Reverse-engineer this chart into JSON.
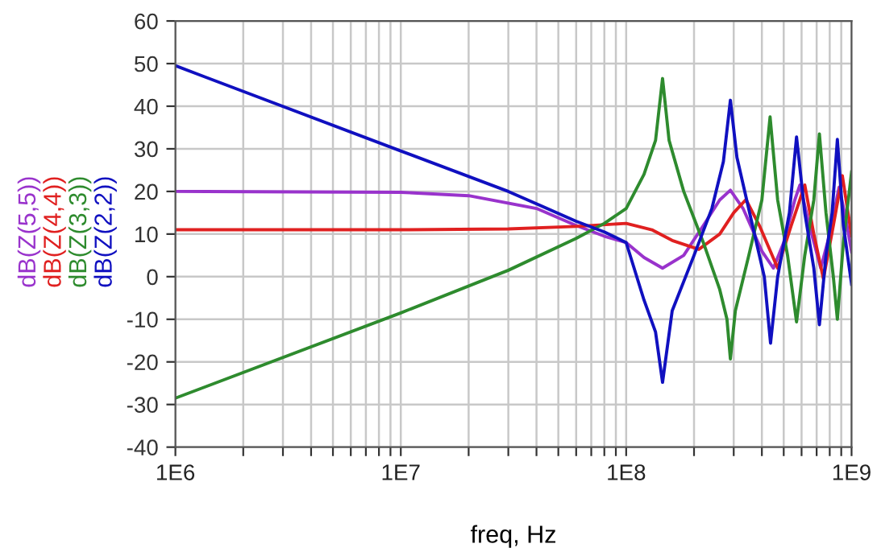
{
  "chart_data": {
    "type": "line",
    "xlabel": "freq, Hz",
    "log": "x",
    "grid": true,
    "legend": "left",
    "line_style": "solid",
    "xlim": [
      1000000,
      1000000000
    ],
    "xticks": [
      {
        "value": 1000000,
        "label": "1E6"
      },
      {
        "value": 2000000,
        "label": null
      },
      {
        "value": 3000000,
        "label": null
      },
      {
        "value": 4000000,
        "label": null
      },
      {
        "value": 5000000,
        "label": null
      },
      {
        "value": 6000000,
        "label": null
      },
      {
        "value": 7000000,
        "label": null
      },
      {
        "value": 8000000,
        "label": null
      },
      {
        "value": 9000000,
        "label": null
      },
      {
        "value": 10000000,
        "label": "1E7"
      },
      {
        "value": 20000000,
        "label": null
      },
      {
        "value": 30000000,
        "label": null
      },
      {
        "value": 40000000,
        "label": null
      },
      {
        "value": 50000000,
        "label": null
      },
      {
        "value": 60000000,
        "label": null
      },
      {
        "value": 70000000,
        "label": null
      },
      {
        "value": 80000000,
        "label": null
      },
      {
        "value": 90000000,
        "label": null
      },
      {
        "value": 100000000,
        "label": "1E8"
      },
      {
        "value": 200000000,
        "label": null
      },
      {
        "value": 300000000,
        "label": null
      },
      {
        "value": 400000000,
        "label": null
      },
      {
        "value": 500000000,
        "label": null
      },
      {
        "value": 600000000,
        "label": null
      },
      {
        "value": 700000000,
        "label": null
      },
      {
        "value": 800000000,
        "label": null
      },
      {
        "value": 900000000,
        "label": null
      },
      {
        "value": 1000000000,
        "label": "1E9"
      }
    ],
    "ylim": [
      -40,
      60
    ],
    "yticks": [
      -40,
      -30,
      -20,
      -10,
      0,
      10,
      20,
      30,
      40,
      50,
      60
    ],
    "series": [
      {
        "name": "dB(Z(5,5))",
        "color": "#9933cc",
        "x": [
          1000000.0,
          10000000.0,
          20000000.0,
          40000000.0,
          60000000.0,
          80000000.0,
          100000000.0,
          120000000.0,
          145000000.0,
          180000000.0,
          220000000.0,
          260000000.0,
          290000000.0,
          330000000.0,
          400000000.0,
          450000000.0,
          500000000.0,
          560000000.0,
          590000000.0,
          650000000.0,
          730000000.0,
          800000000.0,
          880000000.0,
          940000000.0,
          1000000000.0
        ],
        "values": [
          20,
          19.8,
          19,
          16,
          12,
          9.5,
          8,
          4.5,
          2,
          5,
          12,
          18,
          20.3,
          16,
          6,
          2,
          8,
          18,
          21.5,
          12,
          2,
          10,
          21,
          14,
          5.8
        ]
      },
      {
        "name": "dB(Z(4,4))",
        "color": "#e02020",
        "x": [
          1000000.0,
          10000000.0,
          30000000.0,
          60000000.0,
          100000000.0,
          130000000.0,
          160000000.0,
          210000000.0,
          260000000.0,
          300000000.0,
          340000000.0,
          390000000.0,
          470000000.0,
          540000000.0,
          620000000.0,
          680000000.0,
          750000000.0,
          830000000.0,
          910000000.0,
          1000000000.0
        ],
        "values": [
          11,
          11,
          11.2,
          11.8,
          12.5,
          11,
          8.5,
          6.4,
          10,
          15,
          18.1,
          12,
          2,
          12,
          21.5,
          10,
          -0.5,
          12,
          23.7,
          9.6
        ]
      },
      {
        "name": "dB(Z(3,3))",
        "color": "#2e8b2e",
        "x": [
          1000000.0,
          10000000.0,
          30000000.0,
          60000000.0,
          80000000.0,
          100000000.0,
          120000000.0,
          135000000.0,
          145000000.0,
          155000000.0,
          180000000.0,
          220000000.0,
          260000000.0,
          280000000.0,
          290000000.0,
          305000000.0,
          350000000.0,
          400000000.0,
          435000000.0,
          470000000.0,
          520000000.0,
          570000000.0,
          620000000.0,
          680000000.0,
          720000000.0,
          770000000.0,
          830000000.0,
          865000000.0,
          920000000.0,
          1000000000.0
        ],
        "values": [
          -28.5,
          -8.5,
          1.5,
          9,
          12.5,
          16,
          24,
          32,
          46.5,
          32,
          20,
          8,
          -3,
          -10,
          -19.3,
          -8,
          5,
          18,
          37.5,
          18,
          5,
          -10.6,
          5,
          18,
          33.5,
          15,
          0,
          -10,
          8,
          24.6
        ]
      },
      {
        "name": "dB(Z(2,2))",
        "color": "#1010c0",
        "x": [
          1000000.0,
          10000000.0,
          30000000.0,
          60000000.0,
          80000000.0,
          100000000.0,
          120000000.0,
          135000000.0,
          145000000.0,
          160000000.0,
          200000000.0,
          240000000.0,
          270000000.0,
          290000000.0,
          310000000.0,
          360000000.0,
          410000000.0,
          437000000.0,
          470000000.0,
          530000000.0,
          570000000.0,
          620000000.0,
          680000000.0,
          720000000.0,
          770000000.0,
          820000000.0,
          865000000.0,
          920000000.0,
          1000000000.0
        ],
        "values": [
          49.5,
          29.5,
          20,
          13,
          10.5,
          8,
          -5.5,
          -13,
          -24.8,
          -8,
          5,
          16,
          27,
          41.4,
          28,
          13,
          0,
          -15.6,
          0,
          15,
          32.8,
          15,
          2,
          -11.3,
          5,
          15,
          32.2,
          12,
          -1.8
        ]
      }
    ]
  }
}
